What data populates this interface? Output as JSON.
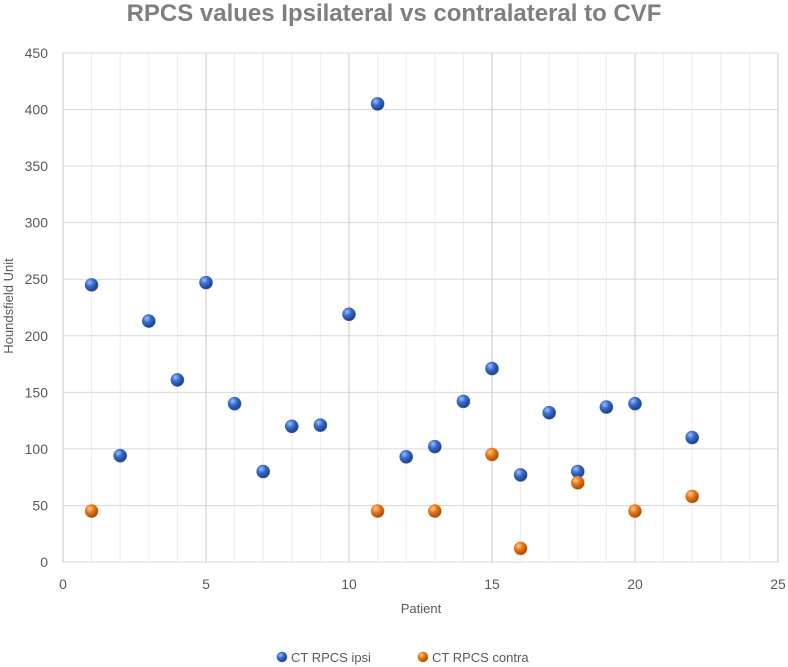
{
  "chart_data": {
    "type": "scatter",
    "title": "RPCS values Ipsilateral vs contralateral to CVF",
    "xlabel": "Patient",
    "ylabel": "Houndsfield Unit",
    "xlim": [
      0,
      25
    ],
    "ylim": [
      0,
      450
    ],
    "x_major_ticks": [
      0,
      5,
      10,
      15,
      20,
      25
    ],
    "y_ticks": [
      0,
      50,
      100,
      150,
      200,
      250,
      300,
      350,
      400,
      450
    ],
    "x_minor_step": 1,
    "grid": true,
    "legend_position": "bottom",
    "series": [
      {
        "name": "CT  RPCS ipsi",
        "color": "#3a6bc9",
        "x": [
          1,
          2,
          3,
          4,
          5,
          6,
          7,
          8,
          9,
          10,
          11,
          12,
          13,
          14,
          15,
          16,
          17,
          18,
          19,
          20,
          22
        ],
        "y": [
          245,
          94,
          213,
          161,
          247,
          140,
          80,
          120,
          121,
          219,
          405,
          93,
          102,
          142,
          171,
          77,
          132,
          80,
          137,
          140,
          110
        ]
      },
      {
        "name": "CT RPCS contra",
        "color": "#e8791e",
        "x": [
          1,
          11,
          13,
          15,
          16,
          18,
          20,
          22
        ],
        "y": [
          45,
          45,
          45,
          95,
          12,
          70,
          45,
          58
        ]
      }
    ]
  }
}
